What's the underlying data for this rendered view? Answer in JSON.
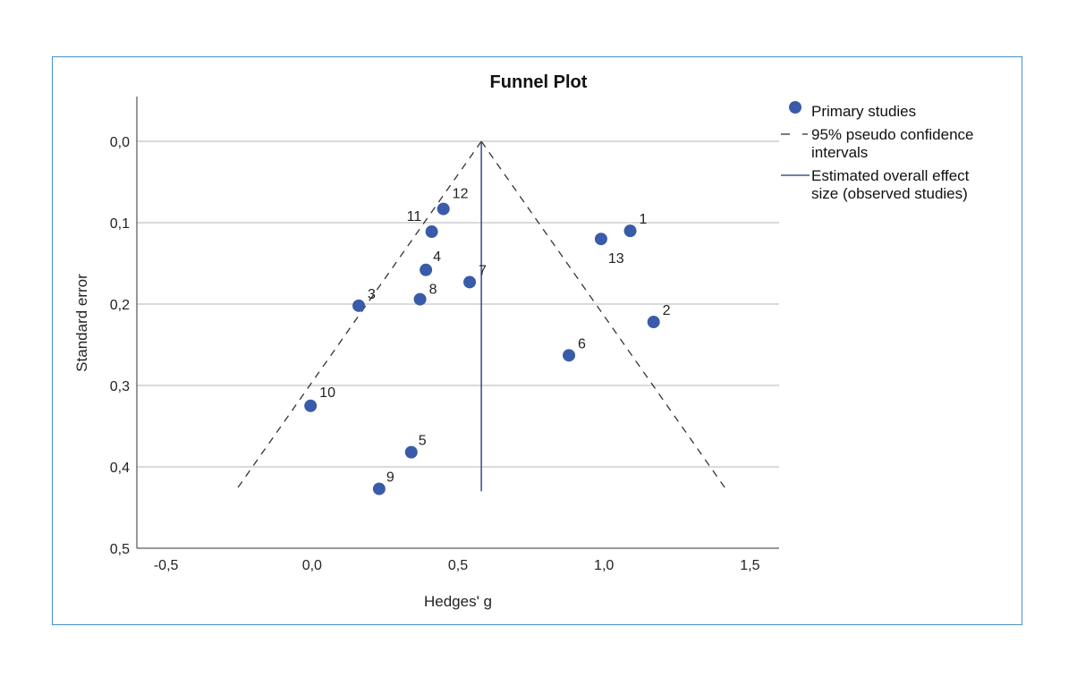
{
  "chart_data": {
    "type": "scatter",
    "title": "Funnel Plot",
    "xlabel": "Hedges' g",
    "ylabel": "Standard error",
    "xlim": [
      -0.6,
      1.6
    ],
    "ylim": [
      0.5,
      -0.055
    ],
    "y_inverted": true,
    "x_ticks": [
      -0.5,
      0.0,
      0.5,
      1.0,
      1.5
    ],
    "x_tick_labels": [
      "-0,5",
      "0,0",
      "0,5",
      "1,0",
      "1,5"
    ],
    "y_ticks": [
      0.0,
      0.1,
      0.2,
      0.3,
      0.4,
      0.5
    ],
    "y_tick_labels": [
      "0,0",
      "0,1",
      "0,2",
      "0,3",
      "0,4",
      "0,5"
    ],
    "grid": "horizontal",
    "legend_position": "right",
    "colors": {
      "points": "#3a5ba9",
      "effect_line": "#3a5a8c",
      "grid": "#b5b5b5",
      "dashed": "#333333"
    },
    "legend": [
      {
        "kind": "marker",
        "lines": [
          "Primary studies"
        ]
      },
      {
        "kind": "dashed",
        "lines": [
          "95% pseudo confidence",
          "intervals"
        ]
      },
      {
        "kind": "solid",
        "lines": [
          "Estimated overall effect",
          "size (observed studies)"
        ]
      }
    ],
    "overall_effect": 0.58,
    "funnel_bottom_se": 0.43,
    "series": [
      {
        "points": [
          {
            "label": "1",
            "x": 1.09,
            "y": 0.11
          },
          {
            "label": "2",
            "x": 1.17,
            "y": 0.222
          },
          {
            "label": "3",
            "x": 0.16,
            "y": 0.202
          },
          {
            "label": "4",
            "x": 0.39,
            "y": 0.158
          },
          {
            "label": "5",
            "x": 0.34,
            "y": 0.382
          },
          {
            "label": "6",
            "x": 0.88,
            "y": 0.263
          },
          {
            "label": "7",
            "x": 0.54,
            "y": 0.173
          },
          {
            "label": "8",
            "x": 0.37,
            "y": 0.194
          },
          {
            "label": "9",
            "x": 0.23,
            "y": 0.427
          },
          {
            "label": "10",
            "x": -0.005,
            "y": 0.325
          },
          {
            "label": "11",
            "x": 0.41,
            "y": 0.111
          },
          {
            "label": "12",
            "x": 0.45,
            "y": 0.083
          },
          {
            "label": "13",
            "x": 0.99,
            "y": 0.12
          }
        ]
      }
    ]
  }
}
